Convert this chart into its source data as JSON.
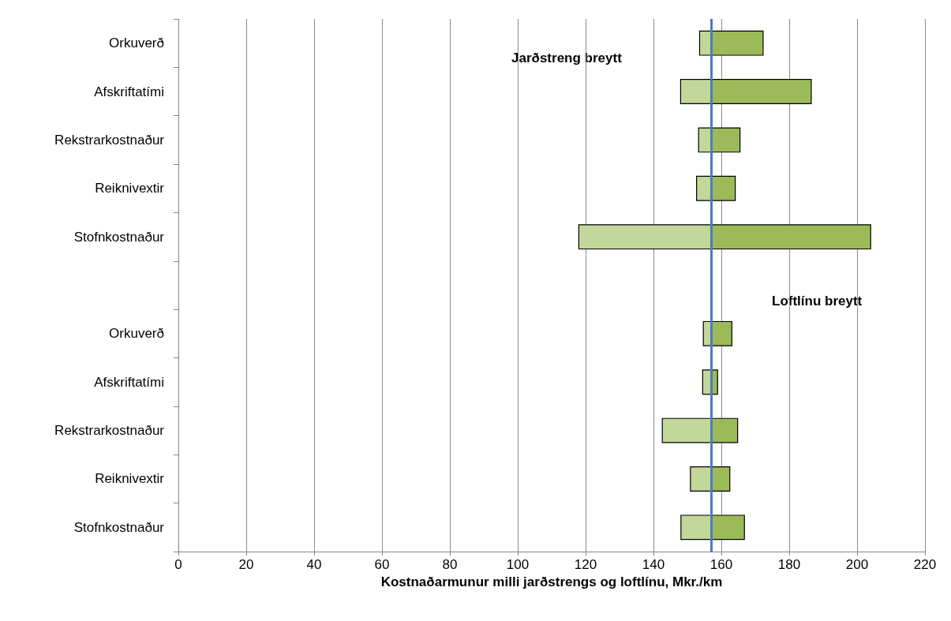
{
  "chart_data": {
    "type": "bar",
    "orientation": "horizontal",
    "xlabel": "Kostnaðarmunur milli jarðstrengs og loftlínu, Mkr./km",
    "categories": [
      "Orkuverð",
      "Afskriftatími",
      "Rekstrarkostnaður",
      "Reiknivextir",
      "Stofnkostnaður",
      null,
      "Orkuverð",
      "Afskriftatími",
      "Rekstrarkostnaður",
      "Reiknivextir",
      "Stofnkostnaður"
    ],
    "series": [
      {
        "color": "#c4d79b",
        "base": [
          153.6,
          148,
          153.3,
          152.7,
          118,
          null,
          154.7,
          154.5,
          142.6,
          150.9,
          148.1
        ],
        "values": [
          3.4,
          9,
          3.7,
          4.3,
          39,
          null,
          2.3,
          2.5,
          14.4,
          6.1,
          8.9
        ]
      },
      {
        "color": "#9bbb59",
        "base": [
          157,
          157,
          157,
          157,
          157,
          null,
          157,
          157,
          157,
          157,
          157
        ],
        "values": [
          15.3,
          29.5,
          8.5,
          7.1,
          47,
          null,
          6.1,
          1.9,
          7.8,
          5.5,
          9.8
        ]
      }
    ],
    "xlim": [
      0,
      220
    ],
    "xticks": [
      0,
      20,
      40,
      60,
      80,
      100,
      120,
      140,
      160,
      180,
      200,
      220
    ],
    "grid": "x",
    "ref_lines": [
      {
        "axis": "x",
        "value": 157,
        "color": "#4a7ebb"
      }
    ],
    "annotations": [
      "Jarðstreng breytt",
      "Loftlínu breytt"
    ]
  }
}
